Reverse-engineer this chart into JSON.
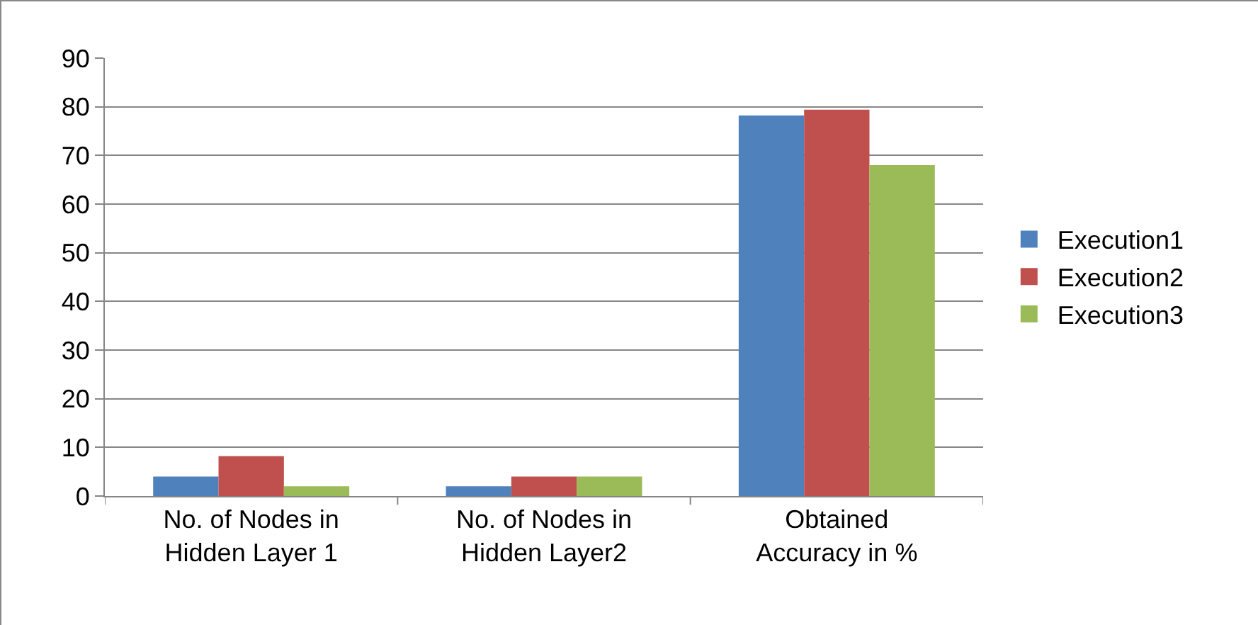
{
  "chart_data": {
    "type": "bar",
    "categories": [
      "No. of Nodes in Hidden Layer 1",
      "No. of Nodes in Hidden Layer2",
      "Obtained Accuracy in %"
    ],
    "series": [
      {
        "name": "Execution1",
        "color": "#4f81bd",
        "values": [
          4,
          2,
          78.2
        ]
      },
      {
        "name": "Execution2",
        "color": "#c0504d",
        "values": [
          8.2,
          4,
          79.4
        ]
      },
      {
        "name": "Execution3",
        "color": "#9bbb59",
        "values": [
          2,
          4,
          68
        ]
      }
    ],
    "ylim": [
      0,
      90
    ],
    "yticks": [
      0,
      10,
      20,
      30,
      40,
      50,
      60,
      70,
      80,
      90
    ],
    "grid": "y",
    "legend": "right"
  }
}
